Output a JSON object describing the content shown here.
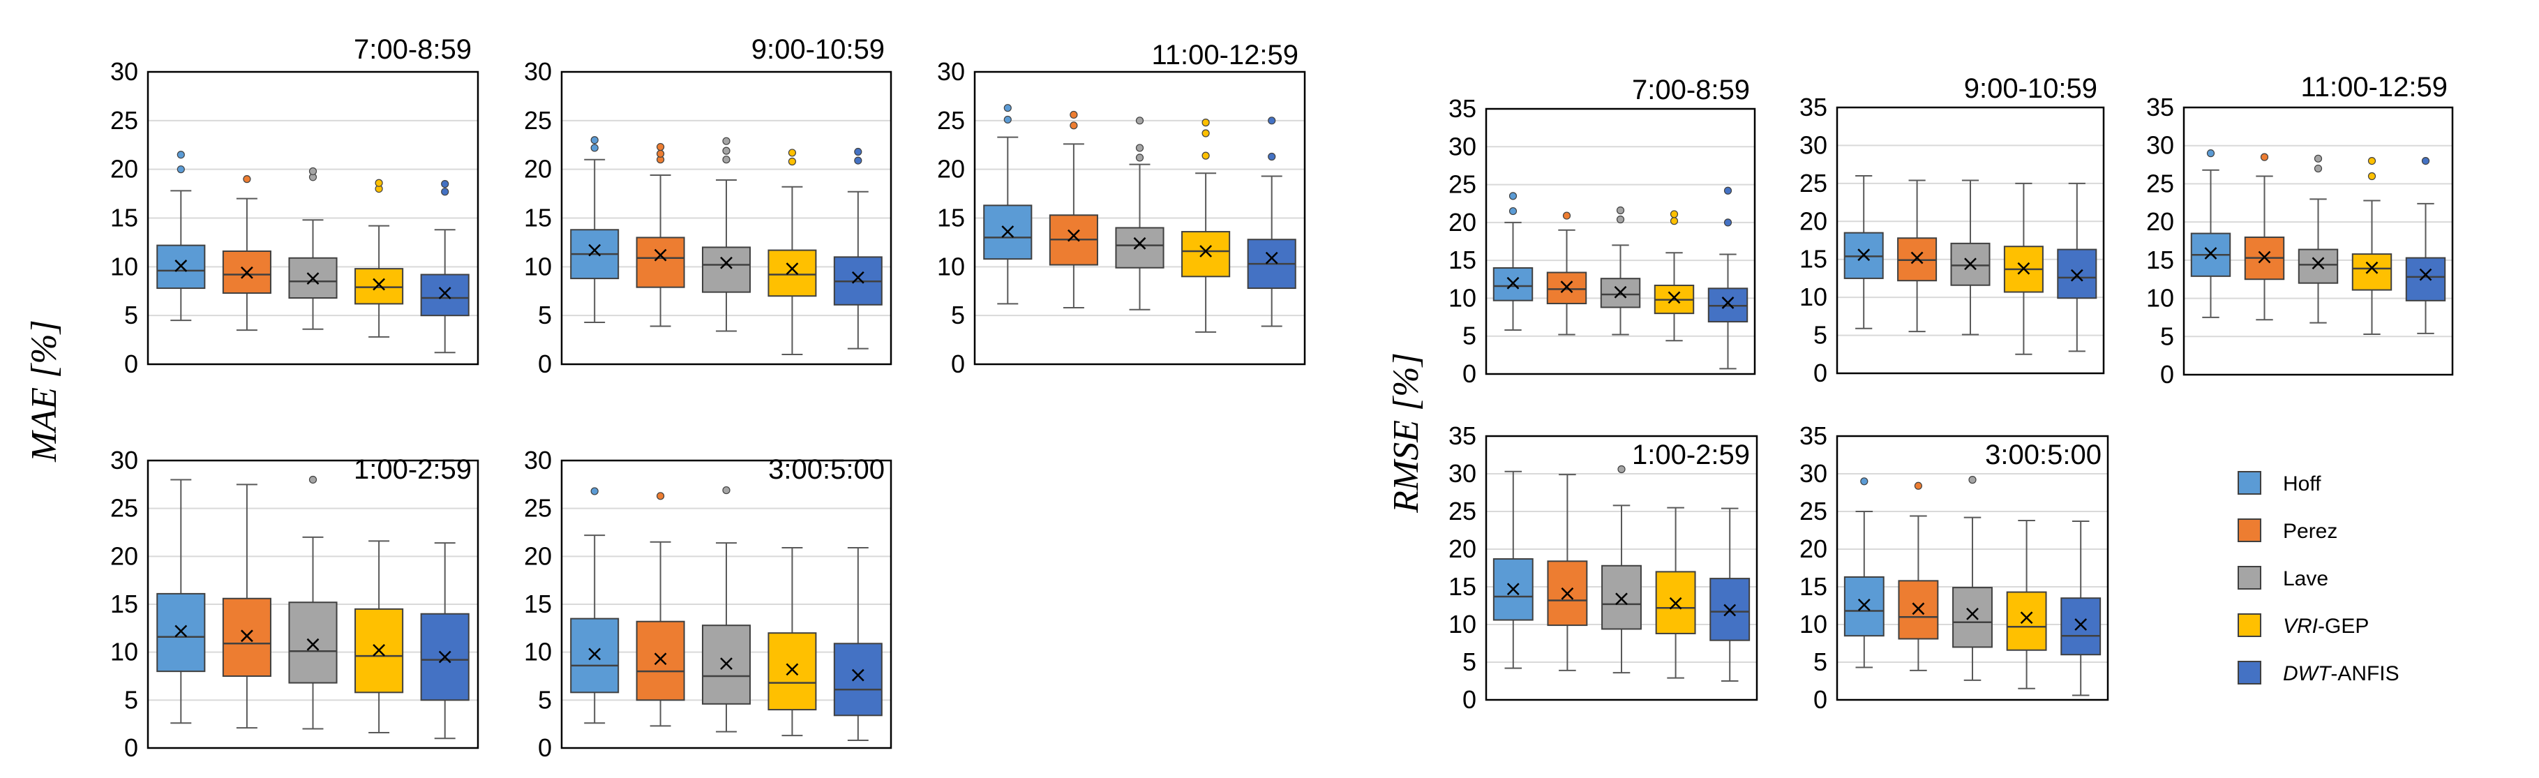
{
  "colors": {
    "Hoff": "#5B9BD5",
    "Perez": "#ED7D31",
    "Lave": "#A5A5A5",
    "VRI-GEP": "#FFC000",
    "DWT-ANFIS": "#4472C4"
  },
  "legend": [
    {
      "key": "Hoff",
      "prefix": "Hoff",
      "suffix": ""
    },
    {
      "key": "Perez",
      "prefix": "Perez",
      "suffix": ""
    },
    {
      "key": "Lave",
      "prefix": "Lave",
      "suffix": ""
    },
    {
      "key": "VRI-GEP",
      "prefix": "VRI",
      "suffix": "-GEP"
    },
    {
      "key": "DWT-ANFIS",
      "prefix": "DWT",
      "suffix": "-ANFIS"
    }
  ],
  "chart_data": [
    {
      "metric": "MAE",
      "ylabel": "MAE [%]",
      "type": "box",
      "ylim": [
        0,
        30
      ],
      "yticks": [
        0,
        5,
        10,
        15,
        20,
        25,
        30
      ],
      "panels": [
        {
          "title": "7:00-8:59",
          "boxes": [
            {
              "method": "Hoff",
              "min": 4.5,
              "q1": 7.8,
              "median": 9.6,
              "q3": 12.2,
              "max": 17.8,
              "mean": 10.1,
              "outliers": [
                20.0,
                21.5
              ]
            },
            {
              "method": "Perez",
              "min": 3.5,
              "q1": 7.3,
              "median": 9.2,
              "q3": 11.6,
              "max": 17.0,
              "mean": 9.4,
              "outliers": [
                19.0
              ]
            },
            {
              "method": "Lave",
              "min": 3.6,
              "q1": 6.8,
              "median": 8.5,
              "q3": 10.9,
              "max": 14.8,
              "mean": 8.8,
              "outliers": [
                19.2,
                19.8
              ]
            },
            {
              "method": "VRI-GEP",
              "min": 2.8,
              "q1": 6.2,
              "median": 7.9,
              "q3": 9.8,
              "max": 14.2,
              "mean": 8.2,
              "outliers": [
                18.0,
                18.6
              ]
            },
            {
              "method": "DWT-ANFIS",
              "min": 1.2,
              "q1": 5.0,
              "median": 6.8,
              "q3": 9.2,
              "max": 13.8,
              "mean": 7.3,
              "outliers": [
                17.7,
                18.5
              ]
            }
          ]
        },
        {
          "title": "9:00-10:59",
          "boxes": [
            {
              "method": "Hoff",
              "min": 4.3,
              "q1": 8.8,
              "median": 11.3,
              "q3": 13.8,
              "max": 21.0,
              "mean": 11.7,
              "outliers": [
                22.2,
                23.0
              ]
            },
            {
              "method": "Perez",
              "min": 3.9,
              "q1": 7.9,
              "median": 10.9,
              "q3": 13.0,
              "max": 19.4,
              "mean": 11.2,
              "outliers": [
                21.0,
                21.6,
                22.3
              ]
            },
            {
              "method": "Lave",
              "min": 3.4,
              "q1": 7.4,
              "median": 10.2,
              "q3": 12.0,
              "max": 18.9,
              "mean": 10.4,
              "outliers": [
                21.0,
                21.9,
                22.9
              ]
            },
            {
              "method": "VRI-GEP",
              "min": 1.0,
              "q1": 7.0,
              "median": 9.2,
              "q3": 11.7,
              "max": 18.2,
              "mean": 9.8,
              "outliers": [
                20.8,
                21.7
              ]
            },
            {
              "method": "DWT-ANFIS",
              "min": 1.6,
              "q1": 6.1,
              "median": 8.5,
              "q3": 11.0,
              "max": 17.7,
              "mean": 8.9,
              "outliers": [
                20.9,
                21.8
              ]
            }
          ]
        },
        {
          "title": "11:00-12:59",
          "boxes": [
            {
              "method": "Hoff",
              "min": 6.2,
              "q1": 10.8,
              "median": 13.0,
              "q3": 16.3,
              "max": 23.3,
              "mean": 13.6,
              "outliers": [
                25.1,
                26.3
              ]
            },
            {
              "method": "Perez",
              "min": 5.8,
              "q1": 10.2,
              "median": 12.8,
              "q3": 15.3,
              "max": 22.6,
              "mean": 13.2,
              "outliers": [
                24.5,
                25.6
              ]
            },
            {
              "method": "Lave",
              "min": 5.6,
              "q1": 9.9,
              "median": 12.2,
              "q3": 14.0,
              "max": 20.5,
              "mean": 12.4,
              "outliers": [
                21.2,
                22.2,
                25.0
              ]
            },
            {
              "method": "VRI-GEP",
              "min": 3.3,
              "q1": 9.0,
              "median": 11.6,
              "q3": 13.6,
              "max": 19.6,
              "mean": 11.6,
              "outliers": [
                21.4,
                23.7,
                24.8
              ]
            },
            {
              "method": "DWT-ANFIS",
              "min": 3.9,
              "q1": 7.8,
              "median": 10.3,
              "q3": 12.8,
              "max": 19.3,
              "mean": 10.9,
              "outliers": [
                21.3,
                25.0
              ]
            }
          ]
        },
        {
          "title": "1:00-2:59",
          "boxes": [
            {
              "method": "Hoff",
              "min": 2.6,
              "q1": 8.0,
              "median": 11.6,
              "q3": 16.1,
              "max": 28.0,
              "mean": 12.2,
              "outliers": []
            },
            {
              "method": "Perez",
              "min": 2.1,
              "q1": 7.5,
              "median": 10.9,
              "q3": 15.6,
              "max": 27.5,
              "mean": 11.7,
              "outliers": []
            },
            {
              "method": "Lave",
              "min": 2.0,
              "q1": 6.8,
              "median": 10.1,
              "q3": 15.2,
              "max": 22.0,
              "mean": 10.8,
              "outliers": [
                28.0
              ]
            },
            {
              "method": "VRI-GEP",
              "min": 1.6,
              "q1": 5.8,
              "median": 9.6,
              "q3": 14.5,
              "max": 21.6,
              "mean": 10.2,
              "outliers": []
            },
            {
              "method": "DWT-ANFIS",
              "min": 1.0,
              "q1": 5.0,
              "median": 9.2,
              "q3": 14.0,
              "max": 21.4,
              "mean": 9.5,
              "outliers": []
            }
          ]
        },
        {
          "title": "3:00:5:00",
          "boxes": [
            {
              "method": "Hoff",
              "min": 2.6,
              "q1": 5.8,
              "median": 8.6,
              "q3": 13.5,
              "max": 22.2,
              "mean": 9.8,
              "outliers": [
                26.8
              ]
            },
            {
              "method": "Perez",
              "min": 2.3,
              "q1": 5.0,
              "median": 8.0,
              "q3": 13.2,
              "max": 21.5,
              "mean": 9.3,
              "outliers": [
                26.3
              ]
            },
            {
              "method": "Lave",
              "min": 1.7,
              "q1": 4.6,
              "median": 7.5,
              "q3": 12.8,
              "max": 21.4,
              "mean": 8.8,
              "outliers": [
                26.9
              ]
            },
            {
              "method": "VRI-GEP",
              "min": 1.3,
              "q1": 4.0,
              "median": 6.8,
              "q3": 12.0,
              "max": 20.9,
              "mean": 8.2,
              "outliers": []
            },
            {
              "method": "DWT-ANFIS",
              "min": 0.8,
              "q1": 3.4,
              "median": 6.1,
              "q3": 10.9,
              "max": 20.9,
              "mean": 7.6,
              "outliers": []
            }
          ]
        }
      ]
    },
    {
      "metric": "RMSE",
      "ylabel": "RMSE [%]",
      "type": "box",
      "ylim": [
        0,
        35
      ],
      "yticks": [
        0,
        5,
        10,
        15,
        20,
        25,
        30,
        35
      ],
      "panels": [
        {
          "title": "7:00-8:59",
          "boxes": [
            {
              "method": "Hoff",
              "min": 5.8,
              "q1": 9.7,
              "median": 11.6,
              "q3": 14.0,
              "max": 20.0,
              "mean": 12.0,
              "outliers": [
                21.5,
                23.5
              ]
            },
            {
              "method": "Perez",
              "min": 5.2,
              "q1": 9.3,
              "median": 11.2,
              "q3": 13.4,
              "max": 19.0,
              "mean": 11.5,
              "outliers": [
                20.9
              ]
            },
            {
              "method": "Lave",
              "min": 5.2,
              "q1": 8.8,
              "median": 10.5,
              "q3": 12.6,
              "max": 17.0,
              "mean": 10.8,
              "outliers": [
                20.4,
                21.6
              ]
            },
            {
              "method": "VRI-GEP",
              "min": 4.4,
              "q1": 8.0,
              "median": 9.8,
              "q3": 11.7,
              "max": 16.0,
              "mean": 10.1,
              "outliers": [
                20.2,
                21.1
              ]
            },
            {
              "method": "DWT-ANFIS",
              "min": 0.7,
              "q1": 6.9,
              "median": 9.0,
              "q3": 11.3,
              "max": 15.8,
              "mean": 9.4,
              "outliers": [
                20.0,
                24.2
              ]
            }
          ]
        },
        {
          "title": "9:00-10:59",
          "boxes": [
            {
              "method": "Hoff",
              "min": 5.9,
              "q1": 12.5,
              "median": 15.4,
              "q3": 18.5,
              "max": 26.0,
              "mean": 15.6,
              "outliers": []
            },
            {
              "method": "Perez",
              "min": 5.5,
              "q1": 12.2,
              "median": 14.9,
              "q3": 17.8,
              "max": 25.4,
              "mean": 15.2,
              "outliers": []
            },
            {
              "method": "Lave",
              "min": 5.1,
              "q1": 11.6,
              "median": 14.2,
              "q3": 17.1,
              "max": 25.4,
              "mean": 14.4,
              "outliers": []
            },
            {
              "method": "VRI-GEP",
              "min": 2.5,
              "q1": 10.7,
              "median": 13.7,
              "q3": 16.7,
              "max": 25.0,
              "mean": 13.8,
              "outliers": []
            },
            {
              "method": "DWT-ANFIS",
              "min": 2.9,
              "q1": 9.9,
              "median": 12.6,
              "q3": 16.3,
              "max": 25.0,
              "mean": 12.9,
              "outliers": []
            }
          ]
        },
        {
          "title": "11:00-12:59",
          "boxes": [
            {
              "method": "Hoff",
              "min": 7.5,
              "q1": 12.9,
              "median": 15.7,
              "q3": 18.5,
              "max": 26.8,
              "mean": 15.9,
              "outliers": [
                29.0
              ]
            },
            {
              "method": "Perez",
              "min": 7.2,
              "q1": 12.5,
              "median": 15.3,
              "q3": 18.0,
              "max": 26.0,
              "mean": 15.4,
              "outliers": [
                28.5
              ]
            },
            {
              "method": "Lave",
              "min": 6.8,
              "q1": 12.0,
              "median": 14.4,
              "q3": 16.4,
              "max": 23.0,
              "mean": 14.6,
              "outliers": [
                27.0,
                28.3
              ]
            },
            {
              "method": "VRI-GEP",
              "min": 5.3,
              "q1": 11.1,
              "median": 13.9,
              "q3": 15.8,
              "max": 22.8,
              "mean": 14.0,
              "outliers": [
                26.0,
                28.0
              ]
            },
            {
              "method": "DWT-ANFIS",
              "min": 5.4,
              "q1": 9.7,
              "median": 12.8,
              "q3": 15.3,
              "max": 22.4,
              "mean": 13.1,
              "outliers": [
                28.0
              ]
            }
          ]
        },
        {
          "title": "1:00-2:59",
          "boxes": [
            {
              "method": "Hoff",
              "min": 4.2,
              "q1": 10.6,
              "median": 13.7,
              "q3": 18.7,
              "max": 30.3,
              "mean": 14.7,
              "outliers": []
            },
            {
              "method": "Perez",
              "min": 3.9,
              "q1": 9.9,
              "median": 13.2,
              "q3": 18.4,
              "max": 29.9,
              "mean": 14.1,
              "outliers": []
            },
            {
              "method": "Lave",
              "min": 3.6,
              "q1": 9.4,
              "median": 12.7,
              "q3": 17.8,
              "max": 25.8,
              "mean": 13.4,
              "outliers": [
                30.6
              ]
            },
            {
              "method": "VRI-GEP",
              "min": 2.9,
              "q1": 8.8,
              "median": 12.2,
              "q3": 17.0,
              "max": 25.5,
              "mean": 12.8,
              "outliers": []
            },
            {
              "method": "DWT-ANFIS",
              "min": 2.5,
              "q1": 7.9,
              "median": 11.7,
              "q3": 16.1,
              "max": 25.4,
              "mean": 11.9,
              "outliers": []
            }
          ]
        },
        {
          "title": "3:00:5:00",
          "boxes": [
            {
              "method": "Hoff",
              "min": 4.3,
              "q1": 8.5,
              "median": 11.8,
              "q3": 16.3,
              "max": 25.0,
              "mean": 12.6,
              "outliers": [
                29.0
              ]
            },
            {
              "method": "Perez",
              "min": 3.9,
              "q1": 8.1,
              "median": 11.0,
              "q3": 15.8,
              "max": 24.4,
              "mean": 12.1,
              "outliers": [
                28.4
              ]
            },
            {
              "method": "Lave",
              "min": 2.6,
              "q1": 7.0,
              "median": 10.3,
              "q3": 14.9,
              "max": 24.2,
              "mean": 11.4,
              "outliers": [
                29.2
              ]
            },
            {
              "method": "VRI-GEP",
              "min": 1.5,
              "q1": 6.6,
              "median": 9.7,
              "q3": 14.3,
              "max": 23.8,
              "mean": 10.9,
              "outliers": []
            },
            {
              "method": "DWT-ANFIS",
              "min": 0.6,
              "q1": 6.0,
              "median": 8.5,
              "q3": 13.5,
              "max": 23.7,
              "mean": 10.0,
              "outliers": []
            }
          ]
        }
      ]
    }
  ]
}
